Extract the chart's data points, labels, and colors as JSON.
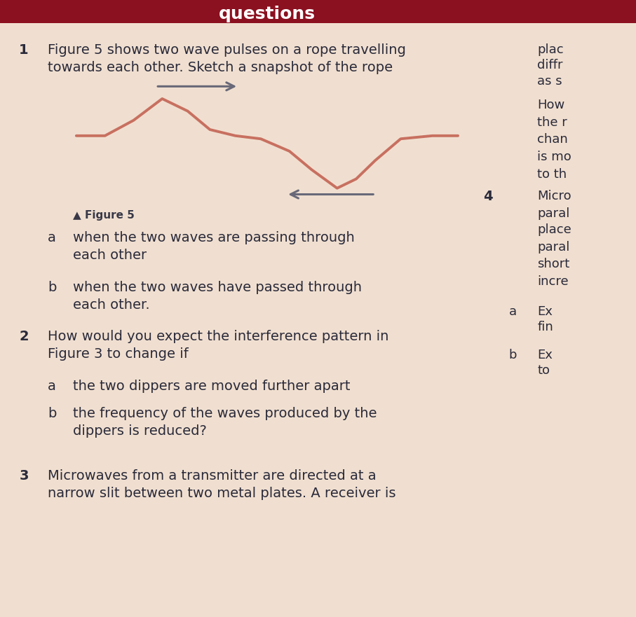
{
  "bg_color": "#f0dfd0",
  "header_color": "#8b1020",
  "wave_color": "#c87060",
  "arrow_color": "#686878",
  "figure_label_color": "#383848",
  "text_color": "#2a2a3a",
  "title_text": "Figure 5 shows two wave pulses on a rope travelling\ntowards each other. Sketch a snapshot of the rope",
  "figure_caption": "▲ Figure 5",
  "q1_num": "1",
  "q1a_label": "a",
  "q1a_text": "when the two waves are passing through\neach other",
  "q1b_label": "b",
  "q1b_text": "when the two waves have passed through\neach other.",
  "q2_num": "2",
  "q2_text": "How would you expect the interference pattern in\nFigure 3 to change if",
  "q2a_label": "a",
  "q2a_text": "the two dippers are moved further apart",
  "q2b_label": "b",
  "q2b_text": "the frequency of the waves produced by the\ndippers is reduced?",
  "q3_num": "3",
  "q3_text": "Microwaves from a transmitter are directed at a\nnarrow slit between two metal plates. A receiver is",
  "right_col_texts": [
    "plac",
    "diffr",
    "as s",
    "How",
    "the r",
    "chan",
    "is mo",
    "to th",
    "Micro",
    "paral",
    "place",
    "paral",
    "short",
    "incre",
    "Ex",
    "fin",
    "Ex",
    "to"
  ],
  "right_col_bold": [
    false,
    false,
    false,
    false,
    false,
    false,
    false,
    false,
    false,
    false,
    false,
    false,
    false,
    false,
    false,
    false,
    false,
    false
  ],
  "fig_width": 9.07,
  "fig_height": 8.81,
  "dpi": 100
}
